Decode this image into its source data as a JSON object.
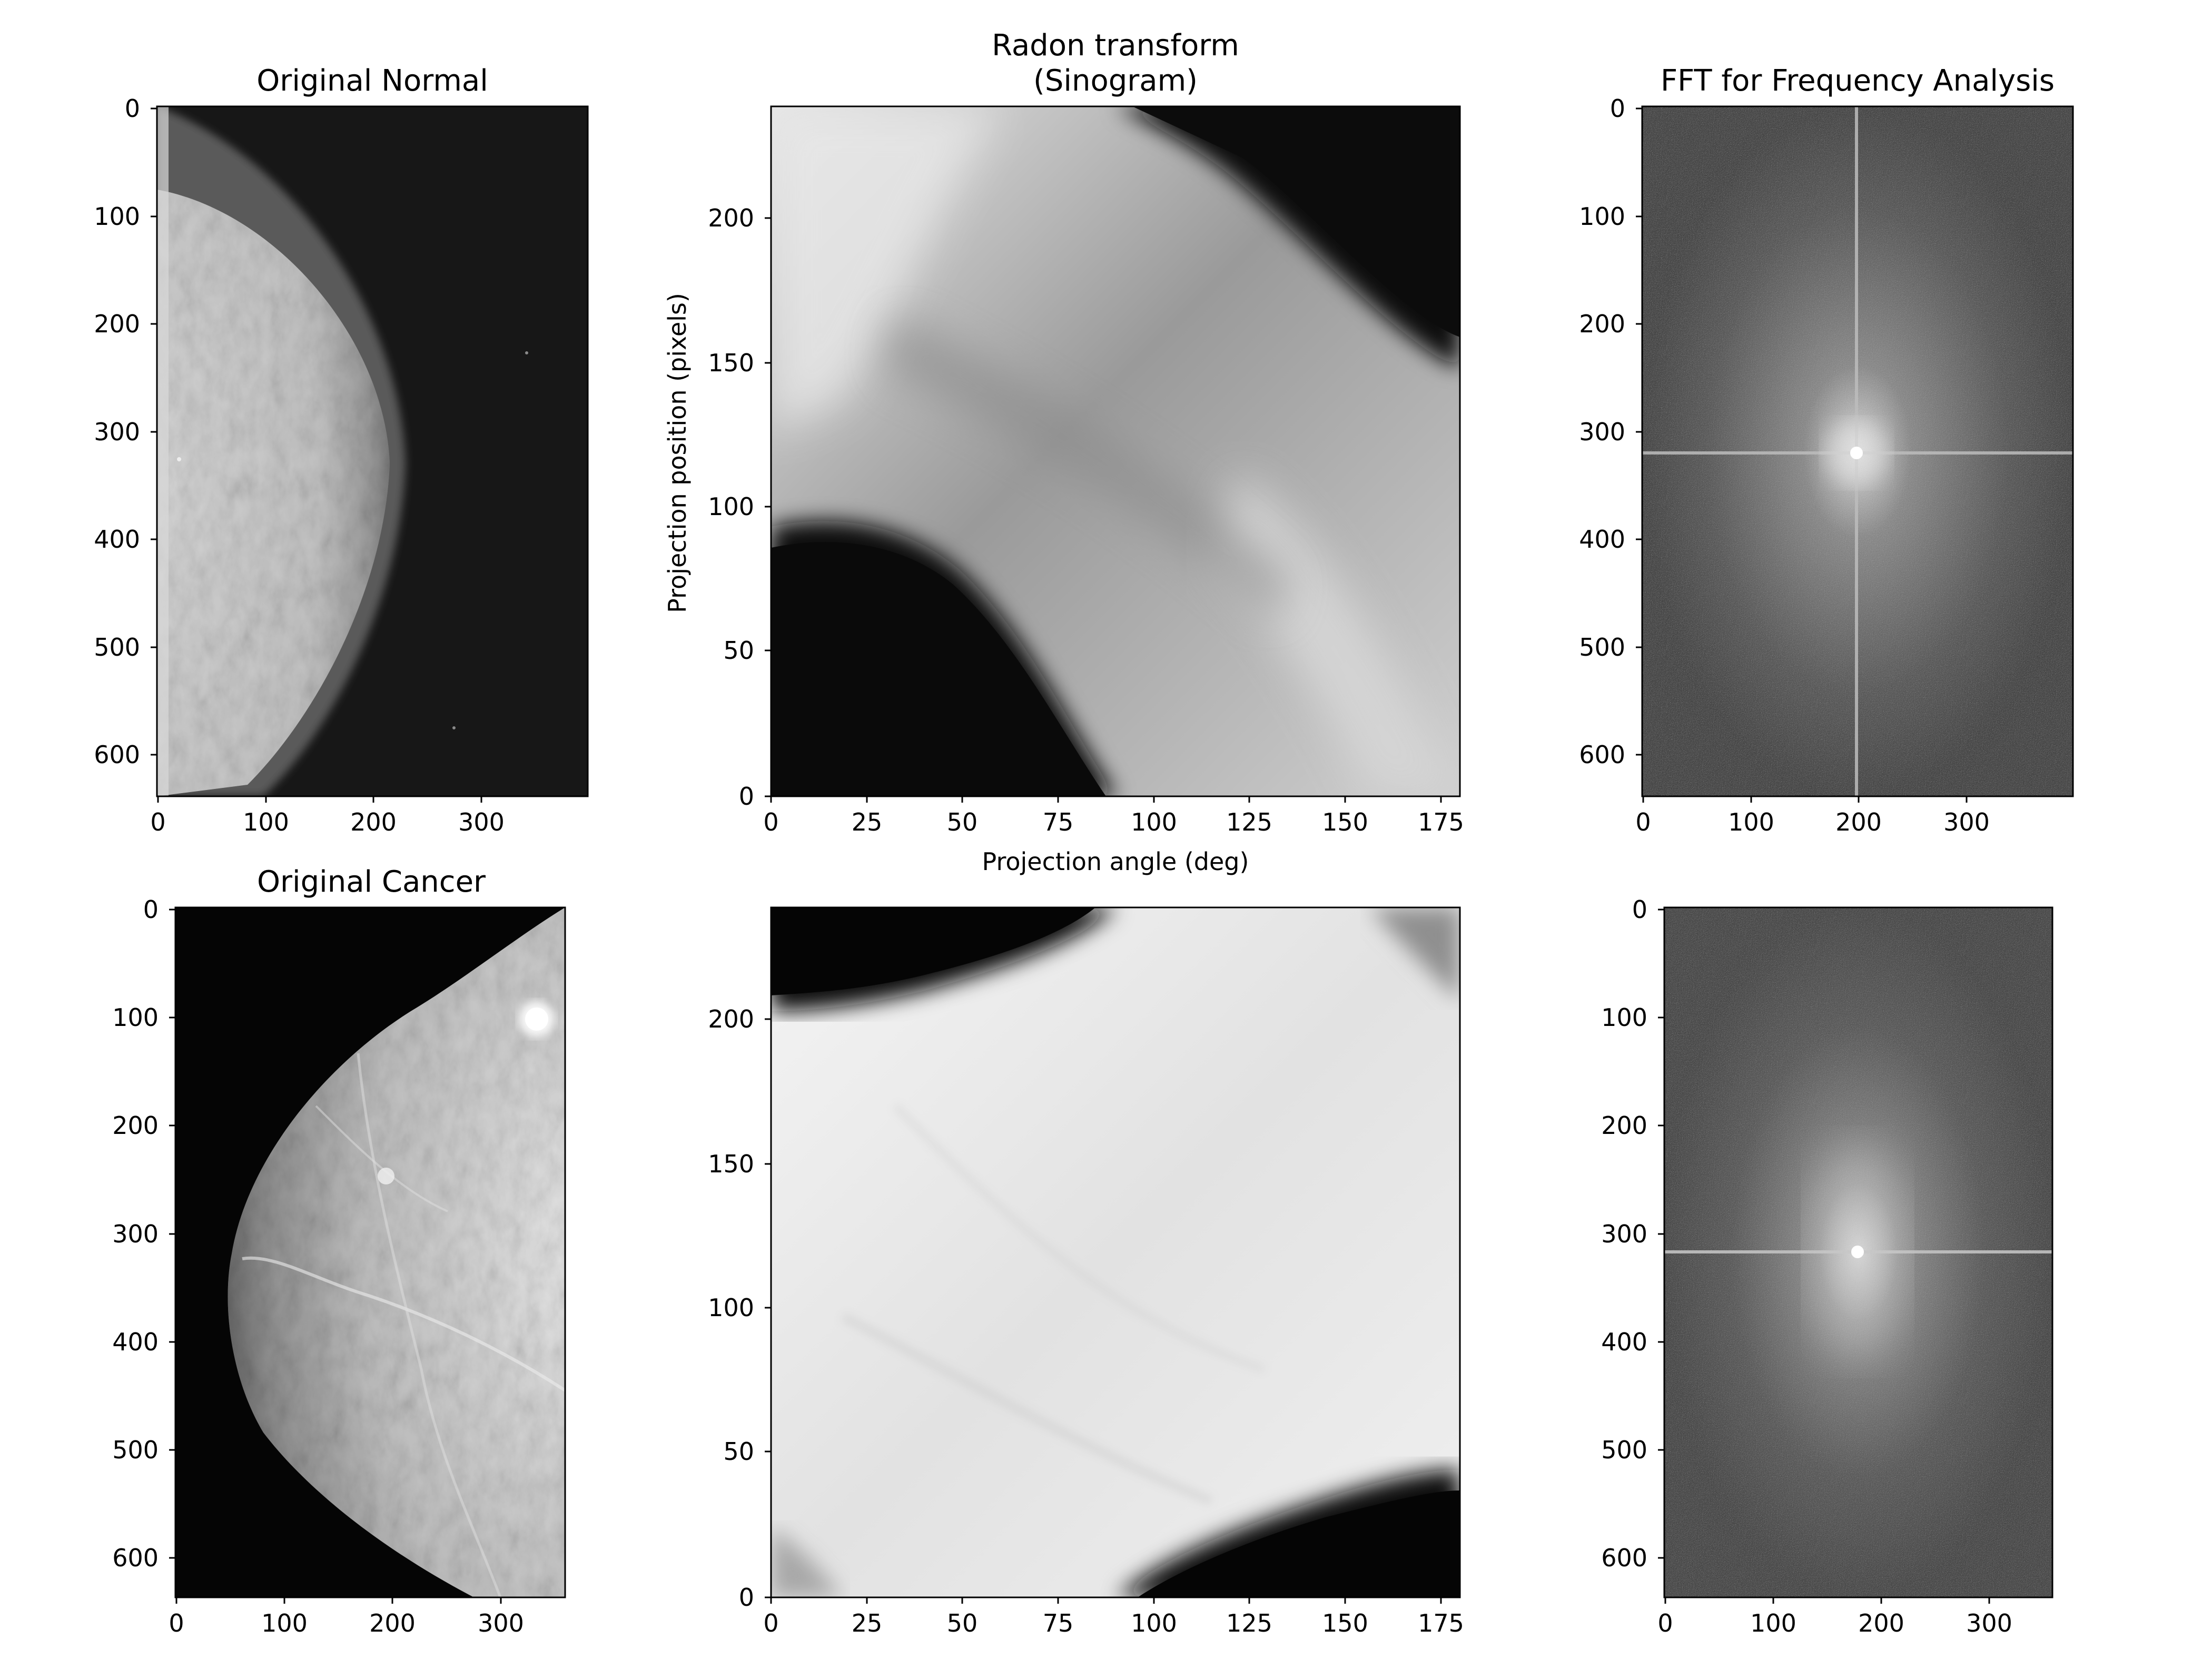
{
  "figure": {
    "panels": [
      {
        "id": "normal-image",
        "kind": "mammogram-normal",
        "title": "Original Normal",
        "xlabel": "",
        "ylabel": "",
        "x_range": [
          0,
          400
        ],
        "y_range": [
          640,
          0
        ],
        "x_ticks": [
          0,
          100,
          200,
          300
        ],
        "y_ticks": [
          0,
          100,
          200,
          300,
          400,
          500,
          600
        ],
        "x_tick_labels": [
          "0",
          "100",
          "200",
          "300"
        ],
        "y_tick_labels": [
          "0",
          "100",
          "200",
          "300",
          "400",
          "500",
          "600"
        ]
      },
      {
        "id": "normal-sinogram",
        "kind": "sinogram-normal",
        "title": "Radon transform\n(Sinogram)",
        "xlabel": "Projection angle (deg)",
        "ylabel": "Projection position (pixels)",
        "x_range": [
          0,
          180
        ],
        "y_range": [
          0,
          240
        ],
        "x_ticks": [
          0,
          25,
          50,
          75,
          100,
          125,
          150,
          175
        ],
        "y_ticks": [
          0,
          50,
          100,
          150,
          200
        ],
        "x_tick_labels": [
          "0",
          "25",
          "50",
          "75",
          "100",
          "125",
          "150",
          "175"
        ],
        "y_tick_labels": [
          "0",
          "50",
          "100",
          "150",
          "200"
        ]
      },
      {
        "id": "normal-fft",
        "kind": "fft-normal",
        "title": "FFT for Frequency Analysis",
        "xlabel": "",
        "ylabel": "",
        "x_range": [
          0,
          400
        ],
        "y_range": [
          640,
          0
        ],
        "x_ticks": [
          0,
          100,
          200,
          300
        ],
        "y_ticks": [
          0,
          100,
          200,
          300,
          400,
          500,
          600
        ],
        "x_tick_labels": [
          "0",
          "100",
          "200",
          "300"
        ],
        "y_tick_labels": [
          "0",
          "100",
          "200",
          "300",
          "400",
          "500",
          "600"
        ]
      },
      {
        "id": "cancer-image",
        "kind": "mammogram-cancer",
        "title": "Original Cancer",
        "xlabel": "",
        "ylabel": "",
        "x_range": [
          0,
          360
        ],
        "y_range": [
          636,
          0
        ],
        "x_ticks": [
          0,
          100,
          200,
          300
        ],
        "y_ticks": [
          0,
          100,
          200,
          300,
          400,
          500,
          600
        ],
        "x_tick_labels": [
          "0",
          "100",
          "200",
          "300"
        ],
        "y_tick_labels": [
          "0",
          "100",
          "200",
          "300",
          "400",
          "500",
          "600"
        ]
      },
      {
        "id": "cancer-sinogram",
        "kind": "sinogram-cancer",
        "title": "",
        "xlabel": "",
        "ylabel": "",
        "x_range": [
          0,
          180
        ],
        "y_range": [
          0,
          240
        ],
        "x_ticks": [
          0,
          25,
          50,
          75,
          100,
          125,
          150,
          175
        ],
        "y_ticks": [
          0,
          50,
          100,
          150,
          200
        ],
        "x_tick_labels": [
          "0",
          "25",
          "50",
          "75",
          "100",
          "125",
          "150",
          "175"
        ],
        "y_tick_labels": [
          "0",
          "50",
          "100",
          "150",
          "200"
        ]
      },
      {
        "id": "cancer-fft",
        "kind": "fft-cancer",
        "title": "",
        "xlabel": "",
        "ylabel": "",
        "x_range": [
          0,
          360
        ],
        "y_range": [
          636,
          0
        ],
        "x_ticks": [
          0,
          100,
          200,
          300
        ],
        "y_ticks": [
          0,
          100,
          200,
          300,
          400,
          500,
          600
        ],
        "x_tick_labels": [
          "0",
          "100",
          "200",
          "300"
        ],
        "y_tick_labels": [
          "0",
          "100",
          "200",
          "300",
          "400",
          "500",
          "600"
        ]
      }
    ]
  }
}
